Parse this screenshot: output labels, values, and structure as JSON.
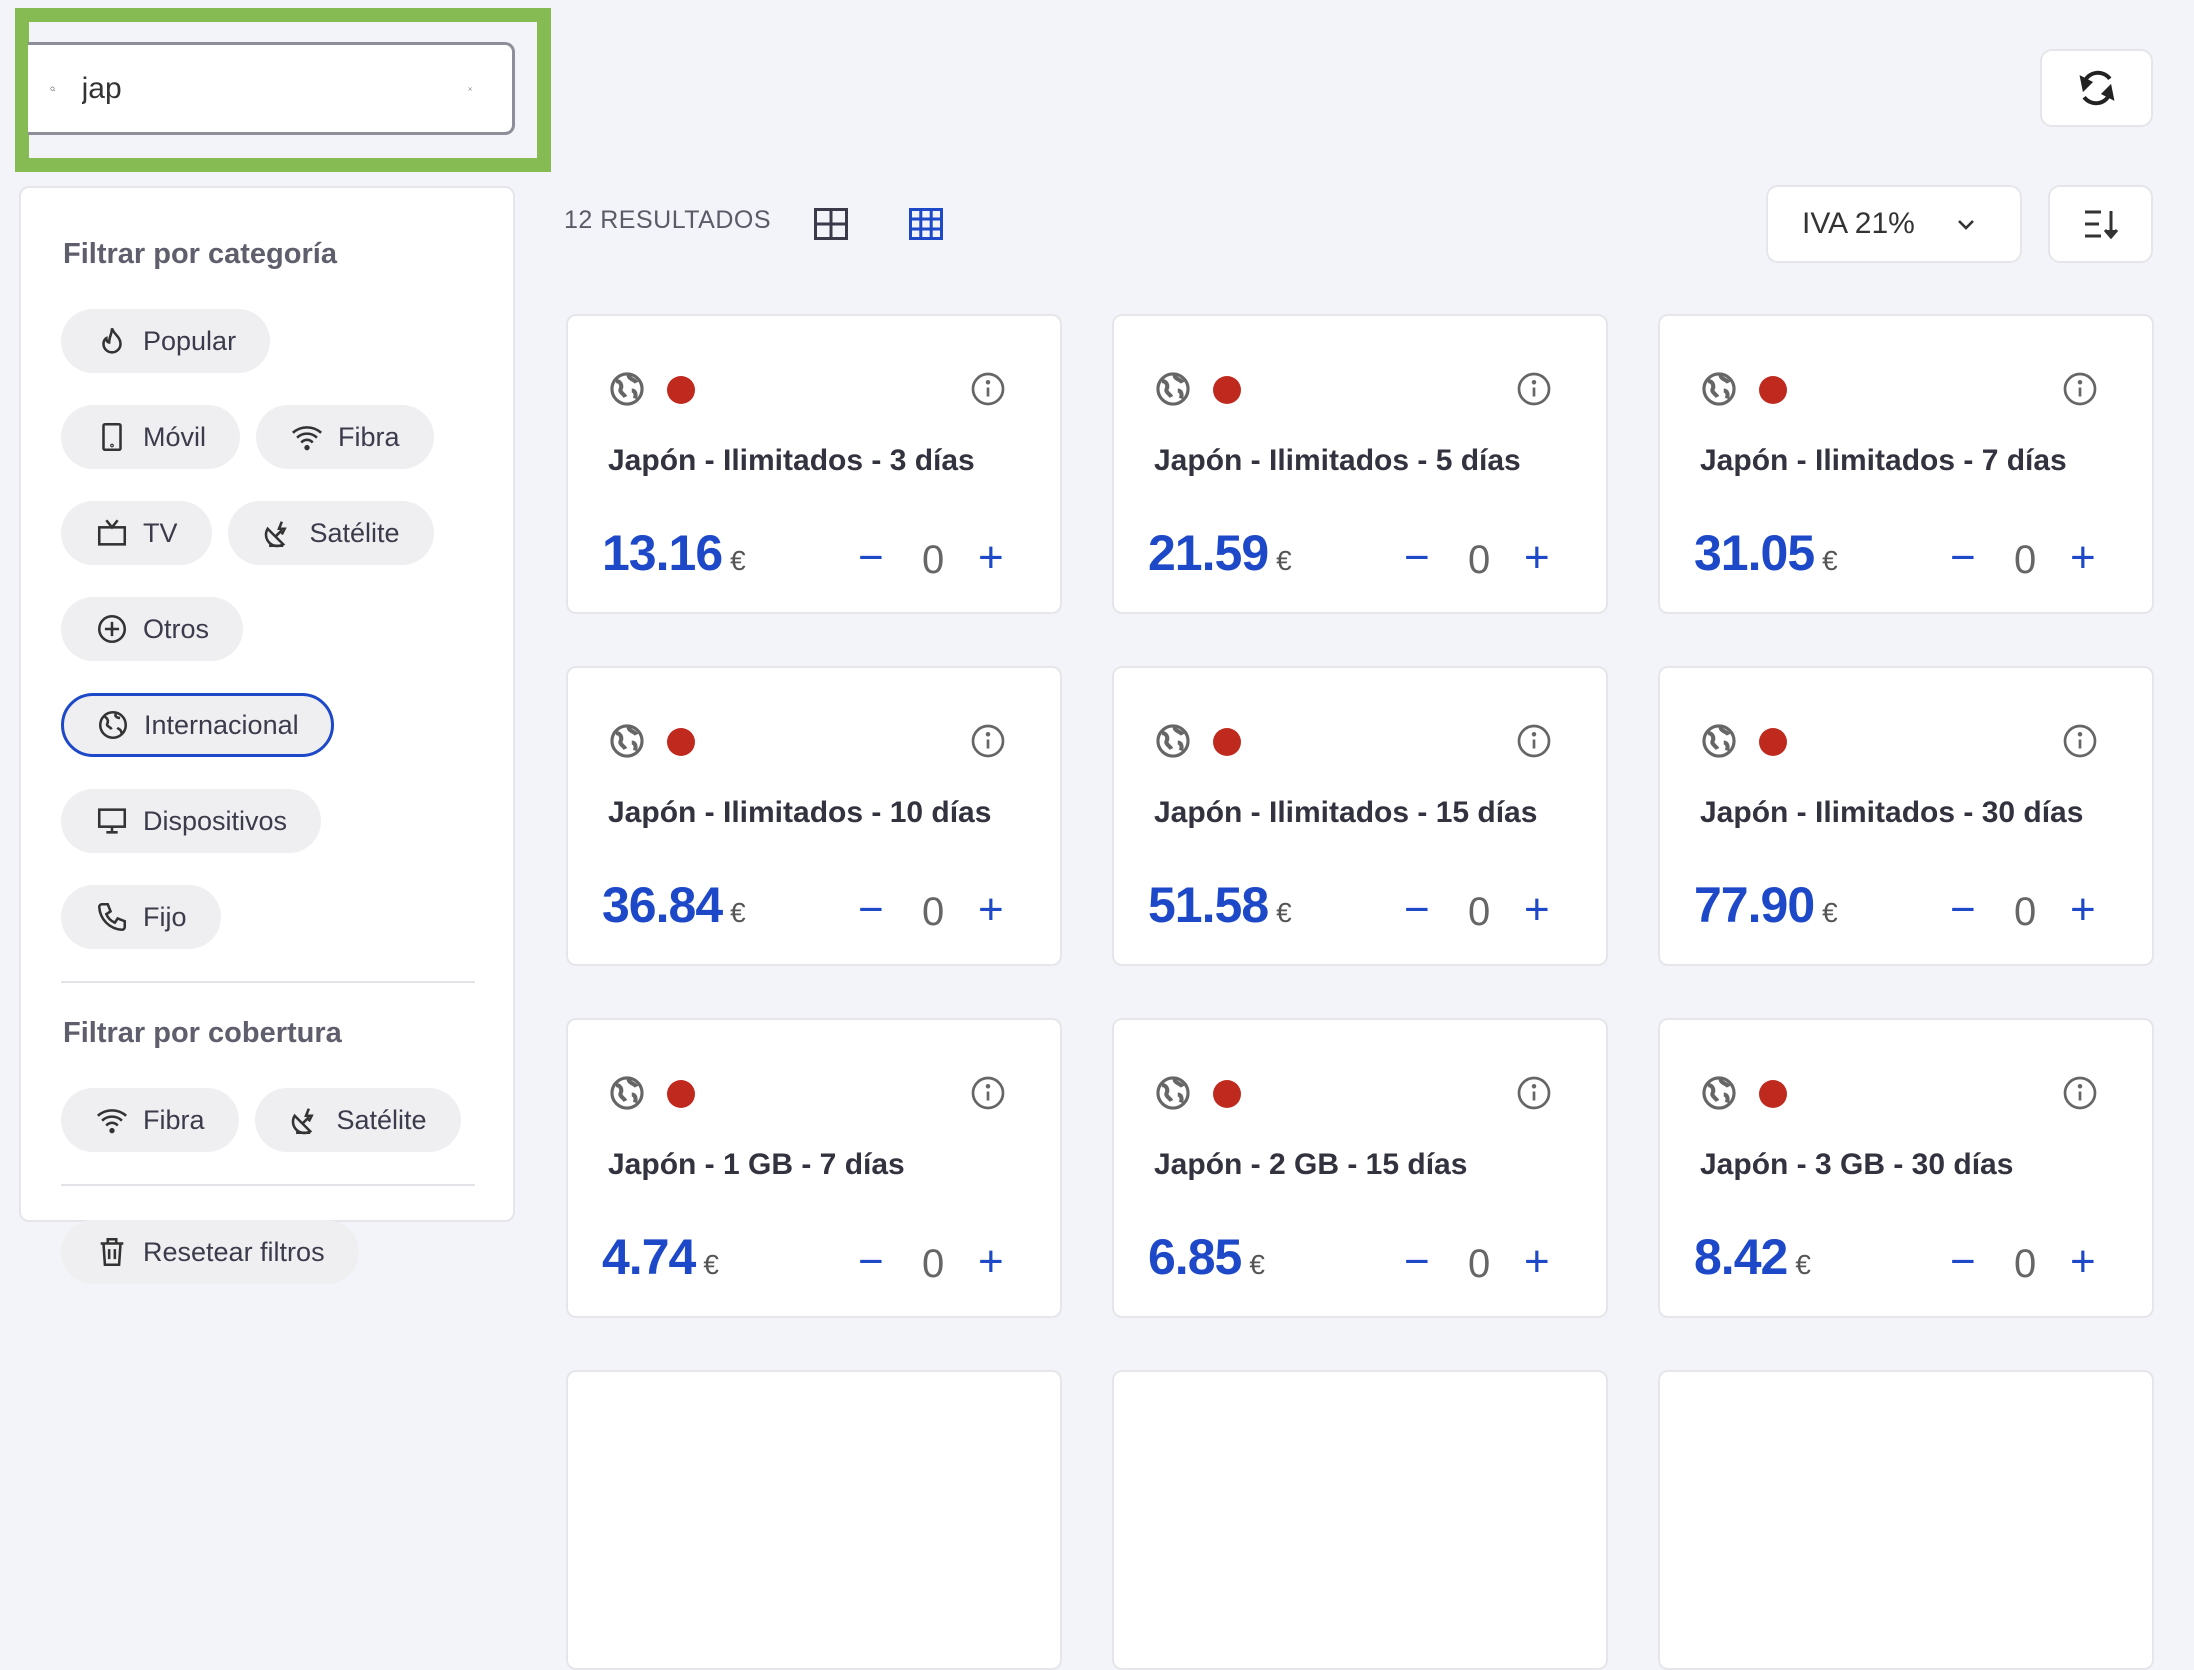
{
  "search": {
    "value": "jap",
    "icon": "search-icon"
  },
  "sidebar": {
    "category_title": "Filtrar por categoría",
    "categories": [
      {
        "label": "Popular",
        "icon": "flame-icon"
      },
      {
        "label": "Móvil",
        "icon": "mobile-icon"
      },
      {
        "label": "Fibra",
        "icon": "wifi-icon"
      },
      {
        "label": "TV",
        "icon": "tv-icon"
      },
      {
        "label": "Satélite",
        "icon": "satellite-icon"
      },
      {
        "label": "Otros",
        "icon": "plus-circle-icon"
      },
      {
        "label": "Internacional",
        "icon": "globe-icon",
        "active": true
      },
      {
        "label": "Dispositivos",
        "icon": "monitor-icon"
      },
      {
        "label": "Fijo",
        "icon": "phone-icon"
      }
    ],
    "coverage_title": "Filtrar por cobertura",
    "coverage": [
      {
        "label": "Fibra",
        "icon": "wifi-icon"
      },
      {
        "label": "Satélite",
        "icon": "satellite-icon"
      }
    ],
    "reset_label": "Resetear filtros"
  },
  "toolbar": {
    "results": "12 RESULTADOS",
    "iva": "IVA 21%"
  },
  "colors": {
    "accent": "#1d48c8",
    "highlight": "#86bb54",
    "status_dot": "#c0291e"
  },
  "products": [
    {
      "title": "Japón - Ilimitados - 3 días",
      "price": "13.16",
      "currency": "€",
      "qty": "0"
    },
    {
      "title": "Japón - Ilimitados - 5 días",
      "price": "21.59",
      "currency": "€",
      "qty": "0"
    },
    {
      "title": "Japón - Ilimitados - 7 días",
      "price": "31.05",
      "currency": "€",
      "qty": "0"
    },
    {
      "title": "Japón - Ilimitados - 10 días",
      "price": "36.84",
      "currency": "€",
      "qty": "0"
    },
    {
      "title": "Japón - Ilimitados - 15 días",
      "price": "51.58",
      "currency": "€",
      "qty": "0"
    },
    {
      "title": "Japón - Ilimitados - 30 días",
      "price": "77.90",
      "currency": "€",
      "qty": "0"
    },
    {
      "title": "Japón - 1 GB - 7 días",
      "price": "4.74",
      "currency": "€",
      "qty": "0"
    },
    {
      "title": "Japón - 2 GB - 15 días",
      "price": "6.85",
      "currency": "€",
      "qty": "0"
    },
    {
      "title": "Japón - 3 GB - 30 días",
      "price": "8.42",
      "currency": "€",
      "qty": "0"
    },
    {
      "title": "",
      "price": "",
      "currency": "",
      "qty": ""
    },
    {
      "title": "",
      "price": "",
      "currency": "",
      "qty": ""
    },
    {
      "title": "",
      "price": "",
      "currency": "",
      "qty": ""
    }
  ]
}
